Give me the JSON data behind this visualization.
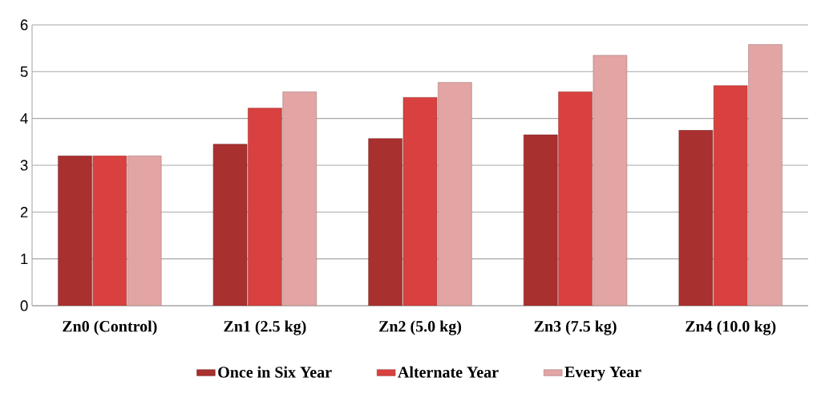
{
  "chart_data": {
    "type": "bar",
    "categories": [
      "Zn0 (Control)",
      "Zn1 (2.5 kg)",
      "Zn2 (5.0 kg)",
      "Zn3 (7.5 kg)",
      "Zn4 (10.0 kg)"
    ],
    "series": [
      {
        "name": "Once in Six Year",
        "color": "#a8302f",
        "values": [
          3.2,
          3.45,
          3.57,
          3.65,
          3.75
        ]
      },
      {
        "name": "Alternate Year",
        "color": "#d8413f",
        "values": [
          3.2,
          4.22,
          4.45,
          4.57,
          4.7
        ]
      },
      {
        "name": "Every Year",
        "color": "#e3a4a4",
        "values": [
          3.2,
          4.57,
          4.77,
          5.35,
          5.58
        ]
      }
    ],
    "ylim": [
      0,
      6
    ],
    "yticks": [
      0,
      1,
      2,
      3,
      4,
      5,
      6
    ],
    "grid": "y",
    "legend": "bottom"
  }
}
